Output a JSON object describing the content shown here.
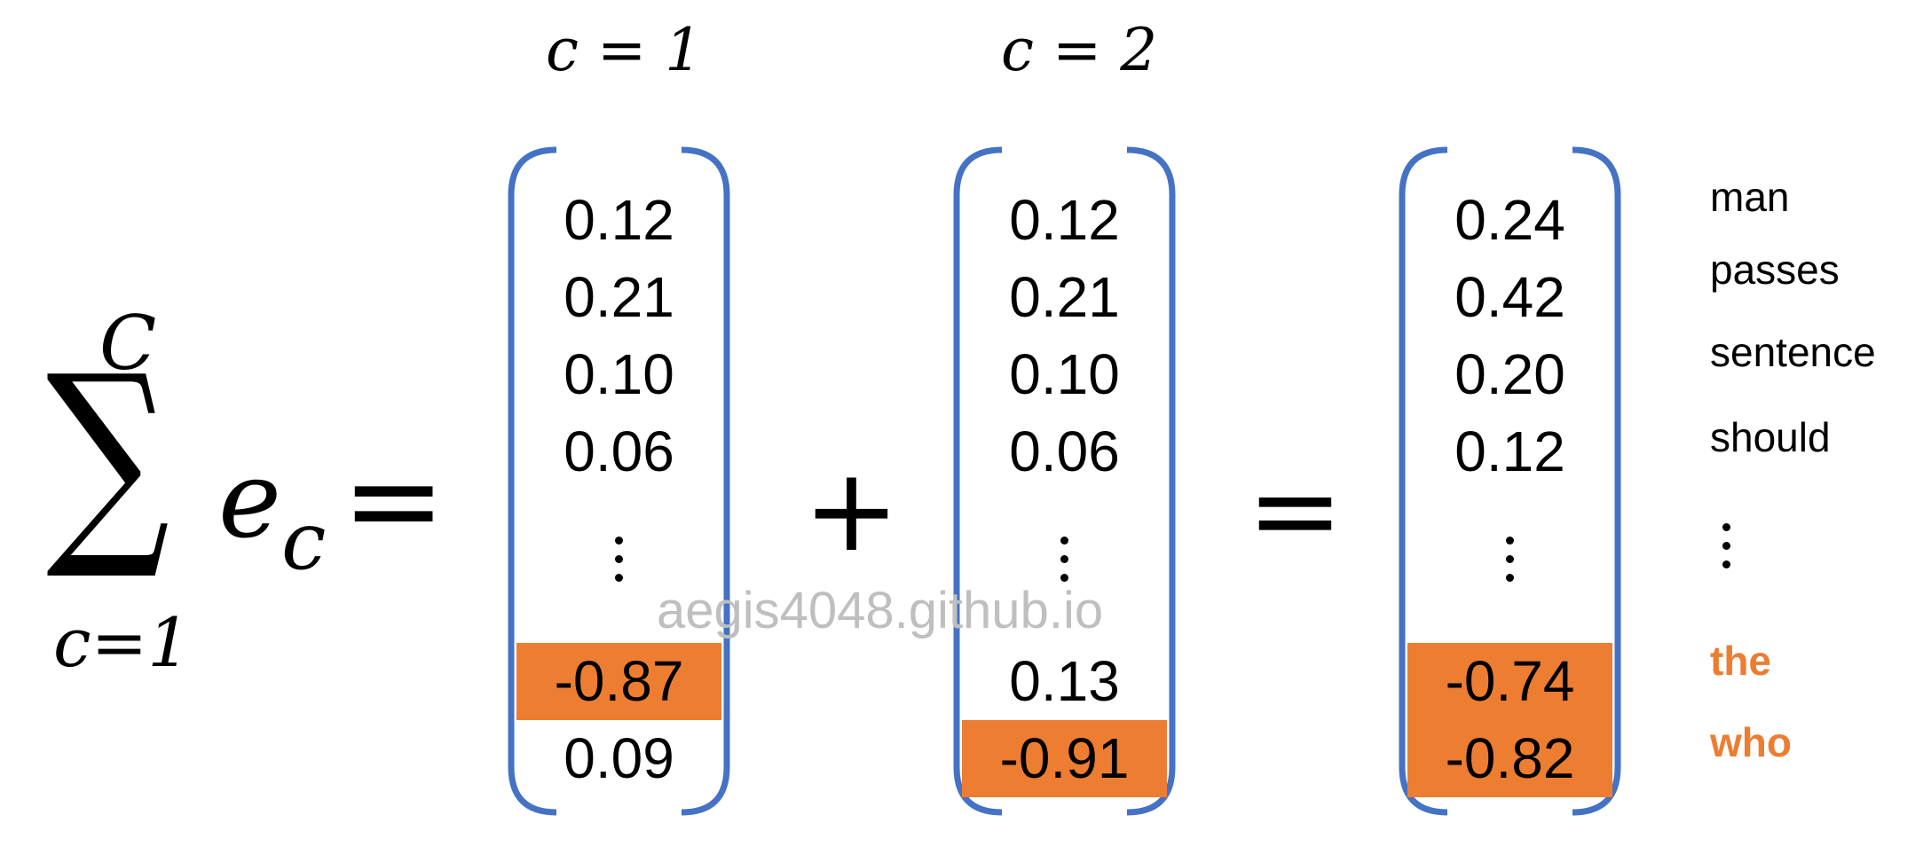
{
  "colors": {
    "bracket": "#4472C4",
    "highlight": "#ED7D31",
    "text": "#000000",
    "watermark": "#BFBFBF"
  },
  "sum": {
    "upper": "C",
    "lower": "c=1",
    "symbol": "∑",
    "term": "e",
    "term_sub": "c",
    "equals": "="
  },
  "vectors": [
    {
      "header": "c = 1",
      "values": [
        "0.12",
        "0.21",
        "0.10",
        "0.06",
        "-0.87",
        "0.09"
      ],
      "highlighted": [
        false,
        false,
        false,
        false,
        true,
        false
      ]
    },
    {
      "header": "c = 2",
      "values": [
        "0.12",
        "0.21",
        "0.10",
        "0.06",
        "0.13",
        "-0.91"
      ],
      "highlighted": [
        false,
        false,
        false,
        false,
        false,
        true
      ]
    },
    {
      "header": "",
      "values": [
        "0.24",
        "0.42",
        "0.20",
        "0.12",
        "-0.74",
        "-0.82"
      ],
      "highlighted": [
        false,
        false,
        false,
        false,
        true,
        true
      ]
    }
  ],
  "operators": {
    "plus": "+",
    "equals": "="
  },
  "words": [
    "man",
    "passes",
    "sentence",
    "should",
    "the",
    "who"
  ],
  "words_highlighted": [
    false,
    false,
    false,
    false,
    true,
    true
  ],
  "watermark": "aegis4048.github.io"
}
